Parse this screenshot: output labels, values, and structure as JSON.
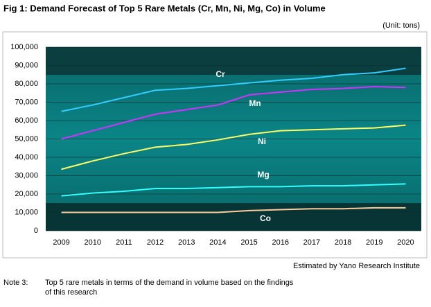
{
  "chart_data": {
    "type": "line",
    "title": "Fig 1: Demand Forecast of Top 5 Rare Metals (Cr, Mn, Ni, Mg, Co) in Volume",
    "unit_note": "(Unit: tons)",
    "source": "Estimated by Yano Research Institute",
    "note_label": "Note 3:",
    "note_lines": [
      "Top 5 rare metals in terms of the demand in volume based on the findings",
      "of this research"
    ],
    "categories": [
      "2009",
      "2010",
      "2011",
      "2012",
      "2013",
      "2014",
      "2015",
      "2016",
      "2017",
      "2018",
      "2019",
      "2020"
    ],
    "series": [
      {
        "name": "Cr",
        "color": "#33ccff",
        "values": [
          65000,
          68500,
          72500,
          76500,
          77500,
          79000,
          80500,
          82000,
          83000,
          85000,
          86000,
          88500
        ]
      },
      {
        "name": "Mn",
        "color": "#cc33ff",
        "values": [
          50000,
          54500,
          59000,
          63500,
          66000,
          68500,
          74000,
          75500,
          77000,
          77500,
          78500,
          78000
        ]
      },
      {
        "name": "Ni",
        "color": "#ffff66",
        "values": [
          33500,
          38000,
          42000,
          45500,
          47000,
          49500,
          52500,
          54500,
          55000,
          55500,
          56000,
          57500
        ]
      },
      {
        "name": "Mg",
        "color": "#33ffff",
        "values": [
          19000,
          20500,
          21500,
          23000,
          23000,
          23500,
          24000,
          24000,
          24500,
          24500,
          25000,
          25500
        ]
      },
      {
        "name": "Co",
        "color": "#ffcc99",
        "values": [
          10000,
          10000,
          10000,
          10000,
          10000,
          10000,
          11000,
          11500,
          12000,
          12000,
          12500,
          12500
        ]
      }
    ],
    "ylim": [
      0,
      100000
    ],
    "yticks": [
      0,
      {
        "value": 10000,
        "label": "10,000"
      },
      {
        "value": 20000,
        "label": "20,000"
      },
      {
        "value": 30000,
        "label": "30,000"
      },
      {
        "value": 40000,
        "label": "40,000"
      },
      {
        "value": 50000,
        "label": "50,000"
      },
      {
        "value": 60000,
        "label": "60,000"
      },
      {
        "value": 70000,
        "label": "70,000"
      },
      {
        "value": 80000,
        "label": "80,000"
      },
      {
        "value": 90000,
        "label": "90,000"
      },
      {
        "value": 100000,
        "label": "100,000"
      }
    ],
    "grid": true
  }
}
